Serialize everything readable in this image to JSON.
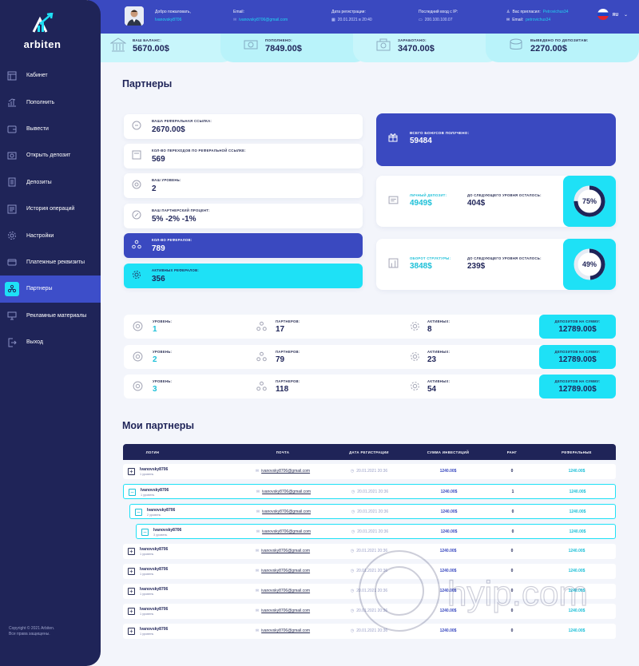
{
  "brand": {
    "name": "arbiten"
  },
  "nav": [
    {
      "label": "Кабинет",
      "icon": "dashboard-icon"
    },
    {
      "label": "Пополнить",
      "icon": "chart-up-icon"
    },
    {
      "label": "Вывести",
      "icon": "wallet-icon"
    },
    {
      "label": "Открыть депозит",
      "icon": "deposit-open-icon"
    },
    {
      "label": "Депозиты",
      "icon": "deposits-icon"
    },
    {
      "label": "История операций",
      "icon": "history-icon"
    },
    {
      "label": "Настройки",
      "icon": "gear-icon"
    },
    {
      "label": "Платежные реквизиты",
      "icon": "card-icon"
    },
    {
      "label": "Партнеры",
      "icon": "partners-icon",
      "active": true
    },
    {
      "label": "Рекламные материалы",
      "icon": "monitor-icon"
    },
    {
      "label": "Выход",
      "icon": "logout-icon"
    }
  ],
  "copyright": {
    "line1": "Copyright © 2021 Arbiten.",
    "line2": "Все права защищены."
  },
  "header": {
    "welcome_label": "Добро пожаловать,",
    "username": "Ivanovsky8706",
    "email_label": "Email:",
    "email": "ivanovsky8706@gmail.com",
    "reg_label": "Дата регистрации:",
    "reg_date": "20.01.2021 в 20:40",
    "lastlogin_label": "Последний вход с IP:",
    "lastlogin_ip": "200.100.100.07",
    "invited_label": "Вас пригласил:",
    "invited_by": "Petrovichus34",
    "invited_email_label": "Email:",
    "invited_email": "petrovichus34",
    "lang": "RU"
  },
  "stats": [
    {
      "label": "ВАШ БАЛАНС:",
      "value": "5670.00$"
    },
    {
      "label": "ПОПОЛНЕНО:",
      "value": "7849.00$"
    },
    {
      "label": "ЗАРАБОТАНО:",
      "value": "3470.00$"
    },
    {
      "label": "ВЫВЕДЕНО ПО ДЕПОЗИТАМ:",
      "value": "2270.00$"
    }
  ],
  "partners_title": "Партнеры",
  "ref_cards": [
    {
      "label": "ВАША РЕФЕРАЛЬНАЯ ССЫЛКА:",
      "value": "2670.00$"
    },
    {
      "label": "КОЛ-ВО ПЕРЕХОДОВ ПО РЕФЕРАЛЬНОЙ ССЫЛКЕ:",
      "value": "569"
    },
    {
      "label": "ВАШ УРОВЕНЬ:",
      "value": "2"
    },
    {
      "label": "ВАШ ПАРТНЕРСКИЙ ПРОЦЕНТ:",
      "value": "5% -2% -1%"
    },
    {
      "label": "КОЛ-ВО РЕФЕРАЛОВ:",
      "value": "789"
    },
    {
      "label": "АКТИВНЫХ РЕФЕРАЛОВ:",
      "value": "356"
    }
  ],
  "bonus": {
    "label": "ВСЕГО БОНУСОВ ПОЛУЧЕНО:",
    "value": "59484"
  },
  "progress": [
    {
      "label1": "ЛИЧНЫЙ ДЕПОЗИТ:",
      "value1": "4949$",
      "label2": "ДО СЛЕДУЮЩЕГО УРОВНЯ ОСТАЛОСЬ:",
      "value2": "404$",
      "percent_text": "75%",
      "percent": 75
    },
    {
      "label1": "ОБОРОТ СТРУКТУРЫ:",
      "value1": "3848$",
      "label2": "ДО СЛЕДУЮЩЕГО УРОВНЯ ОСТАЛОСЬ:",
      "value2": "239$",
      "percent_text": "49%",
      "percent": 49
    }
  ],
  "levels": [
    {
      "level_label": "УРОВЕНЬ:",
      "level": "1",
      "partners_label": "ПАРТНЕРОВ:",
      "partners": "17",
      "active_label": "АКТИВНЫХ:",
      "active": "8",
      "dep_label": "ДЕПОЗИТОВ НА СУММУ:",
      "dep": "12789.00$"
    },
    {
      "level_label": "УРОВЕНЬ:",
      "level": "2",
      "partners_label": "ПАРТНЕРОВ:",
      "partners": "79",
      "active_label": "АКТИВНЫХ:",
      "active": "23",
      "dep_label": "ДЕПОЗИТОВ НА СУММУ:",
      "dep": "12789.00$"
    },
    {
      "level_label": "УРОВЕНЬ:",
      "level": "3",
      "partners_label": "ПАРТНЕРОВ:",
      "partners": "118",
      "active_label": "АКТИВНЫХ:",
      "active": "54",
      "dep_label": "ДЕПОЗИТОВ НА СУММУ:",
      "dep": "12789.00$"
    }
  ],
  "my_partners_title": "Мои партнеры",
  "table": {
    "headers": [
      "ЛОГИН",
      "ПОЧТА",
      "ДАТА РЕГИСТРАЦИИ",
      "СУММА ИНВЕСТИЦИЙ",
      "РАНГ",
      "РЕФЕРАЛЬНЫЕ"
    ],
    "rows": [
      {
        "login": "Ivanovsky8706",
        "level": "1 уровень",
        "email": "ivanovsky8706@gmail.com",
        "date": "20.01.2021 20:36",
        "invest": "1240.00$",
        "rank": "0",
        "ref": "1240.00$",
        "open": false,
        "indent": 0
      },
      {
        "login": "Ivanovsky8706",
        "level": "1 уровень",
        "email": "ivanovsky8706@gmail.com",
        "date": "20.01.2021 20:36",
        "invest": "1240.00$",
        "rank": "1",
        "ref": "1240.00$",
        "open": true,
        "indent": 0
      },
      {
        "login": "Ivanovsky8706",
        "level": "2 уровень",
        "email": "ivanovsky8706@gmail.com",
        "date": "20.01.2021 20:36",
        "invest": "1240.00$",
        "rank": "0",
        "ref": "1240.00$",
        "open": true,
        "indent": 1
      },
      {
        "login": "Ivanovsky8706",
        "level": "3 уровень",
        "email": "ivanovsky8706@gmail.com",
        "date": "20.01.2021 20:36",
        "invest": "1240.00$",
        "rank": "0",
        "ref": "1240.00$",
        "open": true,
        "indent": 2
      },
      {
        "login": "Ivanovsky8706",
        "level": "1 уровень",
        "email": "ivanovsky8706@gmail.com",
        "date": "20.01.2021 20:36",
        "invest": "1240.00$",
        "rank": "0",
        "ref": "1240.00$",
        "open": false,
        "indent": 0
      },
      {
        "login": "Ivanovsky8706",
        "level": "1 уровень",
        "email": "ivanovsky8706@gmail.com",
        "date": "20.01.2021 20:36",
        "invest": "1240.00$",
        "rank": "0",
        "ref": "1240.00$",
        "open": false,
        "indent": 0
      },
      {
        "login": "Ivanovsky8706",
        "level": "1 уровень",
        "email": "ivanovsky8706@gmail.com",
        "date": "20.01.2021 20:36",
        "invest": "1240.00$",
        "rank": "0",
        "ref": "1240.00$",
        "open": false,
        "indent": 0
      },
      {
        "login": "Ivanovsky8706",
        "level": "1 уровень",
        "email": "ivanovsky8706@gmail.com",
        "date": "20.01.2021 20:36",
        "invest": "1240.00$",
        "rank": "0",
        "ref": "1240.00$",
        "open": false,
        "indent": 0
      },
      {
        "login": "Ivanovsky8706",
        "level": "1 уровень",
        "email": "ivanovsky8706@gmail.com",
        "date": "20.01.2021 20:36",
        "invest": "1240.00$",
        "rank": "0",
        "ref": "1240.00$",
        "open": false,
        "indent": 0
      }
    ]
  },
  "colors": {
    "navy": "#1f2458",
    "blue": "#3a49c0",
    "cyan": "#1ee1f6",
    "bg": "#f3f5fb"
  },
  "watermark": "hyip.com"
}
